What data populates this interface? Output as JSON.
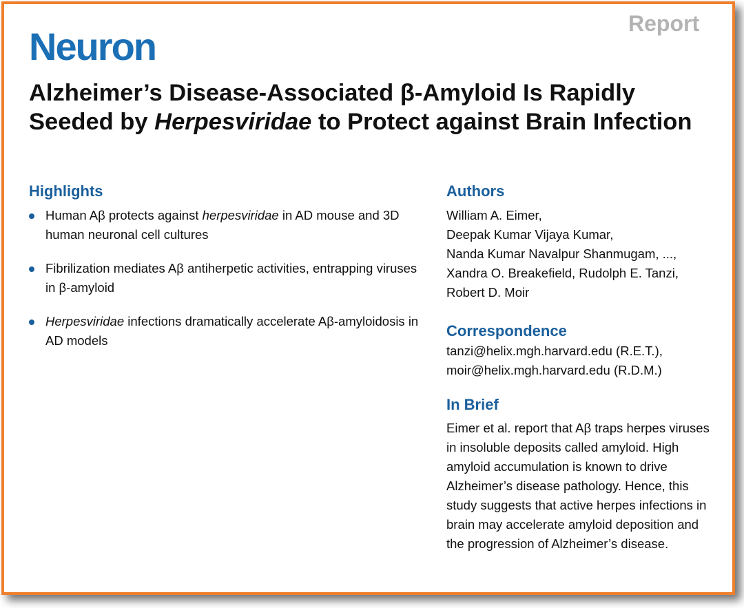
{
  "header": {
    "journal": "Neuron",
    "article_type": "Report"
  },
  "title": {
    "part1": "Alzheimer’s Disease-Associated β-Amyloid Is Rapidly Seeded by ",
    "italic": "Herpesviridae",
    "part2": " to Protect against Brain Infection"
  },
  "highlights": {
    "heading": "Highlights",
    "items": [
      {
        "pre": "Human Aβ protects against ",
        "italic": "herpesviridae",
        "post": " in AD mouse and 3D human neuronal cell cultures"
      },
      {
        "pre": "Fibrilization mediates Aβ antiherpetic activities, entrapping viruses in β-amyloid",
        "italic": "",
        "post": ""
      },
      {
        "pre": "",
        "italic": "Herpesviridae",
        "post": " infections dramatically accelerate Aβ-amyloidosis in AD models"
      }
    ]
  },
  "authors": {
    "heading": "Authors",
    "lines": [
      "William A. Eimer,",
      "Deepak Kumar Vijaya Kumar,",
      "Nanda Kumar Navalpur Shanmugam, ...,",
      "Xandra O. Breakefield, Rudolph E. Tanzi,",
      "Robert D. Moir"
    ]
  },
  "correspondence": {
    "heading": "Correspondence",
    "lines": [
      "tanzi@helix.mgh.harvard.edu (R.E.T.),",
      "moir@helix.mgh.harvard.edu (R.D.M.)"
    ]
  },
  "in_brief": {
    "heading": "In Brief",
    "text": "Eimer et al. report that Aβ traps herpes viruses in insoluble deposits called amyloid. High amyloid accumulation is known to drive Alzheimer’s disease pathology. Hence, this study suggests that active herpes infections in brain may accelerate amyloid deposition and the progression of Alzheimer’s disease."
  },
  "colors": {
    "frame_border": "#ee7f2d",
    "journal_blue": "#1a6fb5",
    "heading_blue": "#1a5f9c",
    "report_gray": "#b3b3b3"
  }
}
